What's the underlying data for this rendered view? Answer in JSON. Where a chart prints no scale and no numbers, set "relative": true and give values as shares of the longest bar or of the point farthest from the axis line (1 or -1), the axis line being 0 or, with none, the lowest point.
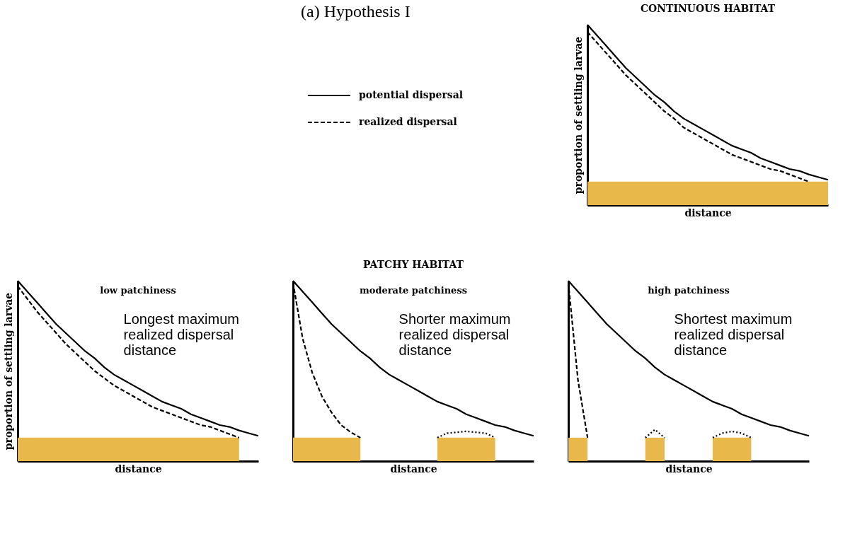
{
  "chart_data": [
    {
      "type": "line",
      "title": "CONTINUOUS HABITAT",
      "xlabel": "distance",
      "ylabel": "proportion of settling larvae",
      "relative": true,
      "tick_labels": false,
      "legend": "left",
      "annotations": [
        "(a) Hypothesis I"
      ],
      "categories": [
        null,
        null,
        null,
        null,
        null,
        null,
        null,
        null,
        null,
        null,
        null,
        null,
        null,
        null,
        null,
        null,
        null,
        null,
        null,
        null,
        null,
        null,
        null,
        null,
        null,
        null
      ],
      "series": [
        {
          "type": "area",
          "color": "#e8b84b",
          "values": [
            0.13,
            0.13,
            0.13,
            0.13,
            0.13,
            0.13,
            0.13,
            0.13,
            0.13,
            0.13,
            0.13,
            0.13,
            0.13,
            0.13,
            0.13,
            0.13,
            0.13,
            0.13,
            0.13,
            0.13,
            0.13,
            0.13,
            0.13,
            0.13,
            0.13,
            0.13
          ]
        },
        {
          "name": "potential dispersal",
          "color": "#000000",
          "line_style": "solid",
          "values": [
            1.0,
            0.94,
            0.88,
            0.82,
            0.76,
            0.71,
            0.66,
            0.61,
            0.57,
            0.52,
            0.48,
            0.45,
            0.42,
            0.39,
            0.36,
            0.33,
            0.31,
            0.29,
            0.26,
            0.24,
            0.22,
            0.2,
            0.19,
            0.17,
            0.155,
            0.14
          ]
        },
        {
          "name": "realized dispersal",
          "color": "#000000",
          "line_style": "dashed",
          "values": [
            0.96,
            0.9,
            0.84,
            0.78,
            0.72,
            0.67,
            0.62,
            0.57,
            0.52,
            0.48,
            0.43,
            0.4,
            0.37,
            0.34,
            0.31,
            0.28,
            0.26,
            0.24,
            0.22,
            0.2,
            0.19,
            0.17,
            0.15,
            0.13,
            null,
            null
          ]
        }
      ]
    },
    {
      "type": "line",
      "subtitle": "low patchiness",
      "xlabel": "distance",
      "ylabel": "proportion of settling larvae",
      "relative": true,
      "tick_labels": false,
      "annotations": [
        "Longest maximum\nrealized dispersal\ndistance"
      ],
      "categories": [
        null,
        null,
        null,
        null,
        null,
        null,
        null,
        null,
        null,
        null,
        null,
        null,
        null,
        null,
        null,
        null,
        null,
        null,
        null,
        null,
        null,
        null,
        null,
        null,
        null,
        null
      ],
      "series": [
        {
          "type": "area",
          "color": "#e8b84b",
          "values": [
            0.13,
            0.13,
            0.13,
            0.13,
            0.13,
            0.13,
            0.13,
            0.13,
            0.13,
            0.13,
            0.13,
            0.13,
            0.13,
            0.13,
            0.13,
            0.13,
            0.13,
            0.13,
            0.13,
            0.13,
            0.13,
            0.13,
            0.13,
            0.13,
            null,
            null
          ]
        },
        {
          "color": "#000000",
          "line_style": "solid",
          "values": [
            1.0,
            0.94,
            0.88,
            0.82,
            0.76,
            0.71,
            0.66,
            0.61,
            0.57,
            0.52,
            0.48,
            0.45,
            0.42,
            0.39,
            0.36,
            0.33,
            0.31,
            0.29,
            0.26,
            0.24,
            0.22,
            0.2,
            0.19,
            0.17,
            0.155,
            0.14
          ]
        },
        {
          "color": "#000000",
          "line_style": "dashed",
          "values": [
            0.97,
            0.9,
            0.83,
            0.77,
            0.71,
            0.65,
            0.6,
            0.55,
            0.5,
            0.46,
            0.42,
            0.39,
            0.36,
            0.33,
            0.3,
            0.28,
            0.26,
            0.24,
            0.22,
            0.2,
            0.19,
            0.17,
            0.15,
            0.13,
            null,
            null
          ]
        }
      ]
    },
    {
      "type": "line",
      "title": "PATCHY HABITAT",
      "subtitle": "moderate patchiness",
      "xlabel": "distance",
      "relative": true,
      "tick_labels": false,
      "annotations": [
        "Shorter maximum\nrealized dispersal\ndistance"
      ],
      "categories": [
        null,
        null,
        null,
        null,
        null,
        null,
        null,
        null,
        null,
        null,
        null,
        null,
        null,
        null,
        null,
        null,
        null,
        null,
        null,
        null,
        null,
        null,
        null,
        null,
        null,
        null
      ],
      "series": [
        {
          "type": "area",
          "color": "#e8b84b",
          "values": [
            0.13,
            0.13,
            0.13,
            0.13,
            0.13,
            0.13,
            0.13,
            0.13,
            null,
            null,
            null,
            null,
            null,
            null,
            null,
            null,
            null,
            null,
            null,
            null,
            null,
            null,
            null,
            null,
            null,
            null
          ]
        },
        {
          "type": "area",
          "color": "#e8b84b",
          "values": [
            null,
            null,
            null,
            null,
            null,
            null,
            null,
            null,
            null,
            null,
            null,
            null,
            null,
            null,
            null,
            0.13,
            0.13,
            0.13,
            0.13,
            0.13,
            0.13,
            0.13,
            null,
            null,
            null,
            null
          ]
        },
        {
          "color": "#000000",
          "line_style": "solid",
          "values": [
            1.0,
            0.94,
            0.88,
            0.82,
            0.76,
            0.71,
            0.66,
            0.61,
            0.57,
            0.52,
            0.48,
            0.45,
            0.42,
            0.39,
            0.36,
            0.33,
            0.31,
            0.29,
            0.26,
            0.24,
            0.22,
            0.2,
            0.19,
            0.17,
            0.155,
            0.14
          ]
        },
        {
          "color": "#000000",
          "line_style": "dashed",
          "values": [
            0.99,
            0.68,
            0.49,
            0.36,
            0.27,
            0.2,
            0.16,
            0.13,
            null,
            null,
            null,
            null,
            null,
            null,
            null,
            null,
            null,
            null,
            null,
            null,
            null,
            null,
            null,
            null,
            null,
            null
          ]
        },
        {
          "color": "#000000",
          "line_style": "dotted",
          "values": [
            null,
            null,
            null,
            null,
            null,
            null,
            null,
            null,
            null,
            null,
            null,
            null,
            null,
            null,
            null,
            0.13,
            0.155,
            0.16,
            0.165,
            0.16,
            0.155,
            0.13,
            null,
            null,
            null,
            null
          ]
        }
      ]
    },
    {
      "type": "line",
      "subtitle": "high patchiness",
      "xlabel": "distance",
      "relative": true,
      "tick_labels": false,
      "annotations": [
        "Shortest maximum\nrealized dispersal\ndistance"
      ],
      "categories": [
        null,
        null,
        null,
        null,
        null,
        null,
        null,
        null,
        null,
        null,
        null,
        null,
        null,
        null,
        null,
        null,
        null,
        null,
        null,
        null,
        null,
        null,
        null,
        null,
        null,
        null
      ],
      "series": [
        {
          "type": "area",
          "color": "#e8b84b",
          "values": [
            0.13,
            0.13,
            0.13,
            null,
            null,
            null,
            null,
            null,
            null,
            null,
            null,
            null,
            null,
            null,
            null,
            null,
            null,
            null,
            null,
            null,
            null,
            null,
            null,
            null,
            null,
            null
          ]
        },
        {
          "type": "area",
          "color": "#e8b84b",
          "values": [
            null,
            null,
            null,
            null,
            null,
            null,
            null,
            null,
            0.13,
            0.13,
            0.13,
            null,
            null,
            null,
            null,
            null,
            null,
            null,
            null,
            null,
            null,
            null,
            null,
            null,
            null,
            null
          ]
        },
        {
          "type": "area",
          "color": "#e8b84b",
          "values": [
            null,
            null,
            null,
            null,
            null,
            null,
            null,
            null,
            null,
            null,
            null,
            null,
            null,
            null,
            null,
            0.13,
            0.13,
            0.13,
            0.13,
            0.13,
            null,
            null,
            null,
            null,
            null,
            null
          ]
        },
        {
          "color": "#000000",
          "line_style": "solid",
          "values": [
            1.0,
            0.94,
            0.88,
            0.82,
            0.76,
            0.71,
            0.66,
            0.61,
            0.57,
            0.52,
            0.48,
            0.45,
            0.42,
            0.39,
            0.36,
            0.33,
            0.31,
            0.29,
            0.26,
            0.24,
            0.22,
            0.2,
            0.19,
            0.17,
            0.155,
            0.14
          ]
        },
        {
          "color": "#000000",
          "line_style": "dashed",
          "values": [
            0.99,
            0.45,
            0.13,
            null,
            null,
            null,
            null,
            null,
            null,
            null,
            null,
            null,
            null,
            null,
            null,
            null,
            null,
            null,
            null,
            null,
            null,
            null,
            null,
            null,
            null,
            null
          ]
        },
        {
          "color": "#000000",
          "line_style": "dotted",
          "values": [
            null,
            null,
            null,
            null,
            null,
            null,
            null,
            null,
            0.13,
            0.175,
            0.13,
            null,
            null,
            null,
            null,
            null,
            null,
            null,
            null,
            null,
            null,
            null,
            null,
            null,
            null,
            null
          ]
        },
        {
          "color": "#000000",
          "line_style": "dotted",
          "values": [
            null,
            null,
            null,
            null,
            null,
            null,
            null,
            null,
            null,
            null,
            null,
            null,
            null,
            null,
            null,
            0.13,
            0.155,
            0.165,
            0.155,
            0.13,
            null,
            null,
            null,
            null,
            null,
            null
          ]
        }
      ]
    }
  ]
}
